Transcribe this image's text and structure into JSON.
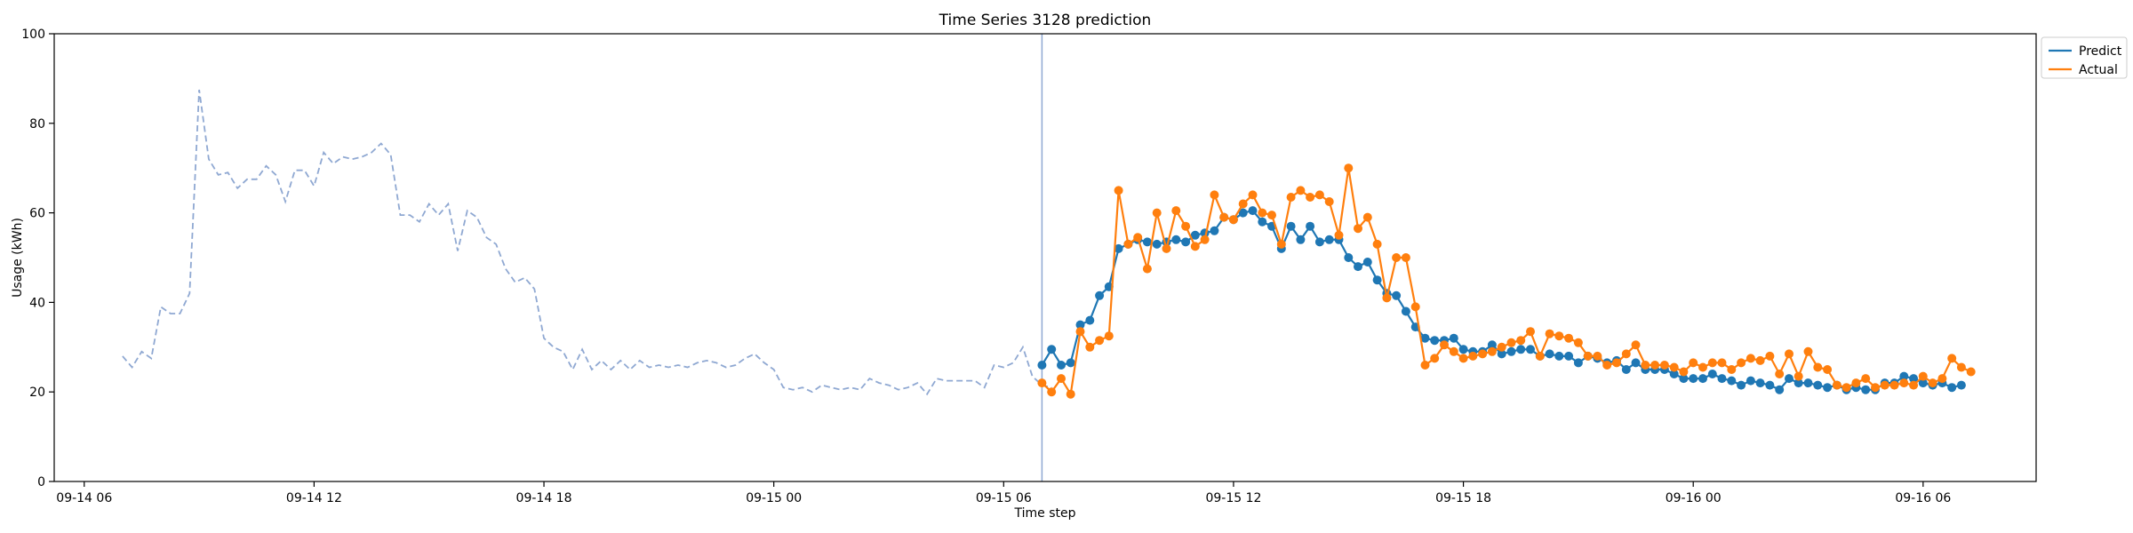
{
  "chart_data": {
    "type": "line",
    "title": "Time Series 3128 prediction",
    "xlabel": "Time step",
    "ylabel": "Usage (kWh)",
    "ylim": [
      0,
      100
    ],
    "yticks": [
      0,
      20,
      40,
      60,
      80,
      100
    ],
    "xlim": [
      "2024-09-14 05:13",
      "2024-09-16 08:57"
    ],
    "xticks": [
      {
        "t": "2024-09-14 06:00",
        "label": "09-14 06"
      },
      {
        "t": "2024-09-14 12:00",
        "label": "09-14 12"
      },
      {
        "t": "2024-09-14 18:00",
        "label": "09-14 18"
      },
      {
        "t": "2024-09-15 00:00",
        "label": "09-15 00"
      },
      {
        "t": "2024-09-15 06:00",
        "label": "09-15 06"
      },
      {
        "t": "2024-09-15 12:00",
        "label": "09-15 12"
      },
      {
        "t": "2024-09-15 18:00",
        "label": "09-15 18"
      },
      {
        "t": "2024-09-16 00:00",
        "label": "09-16 00"
      },
      {
        "t": "2024-09-16 06:00",
        "label": "09-16 06"
      }
    ],
    "vline": "2024-09-15 07:00",
    "series": [
      {
        "name": "History",
        "style": "dashed",
        "color": "#8fa8d2",
        "start": "2024-09-14 07:00",
        "interval_minutes": 15,
        "values": [
          28,
          25.5,
          29,
          27.5,
          39,
          37.5,
          37.5,
          42,
          87.5,
          72,
          68.5,
          69,
          65.5,
          67.5,
          67.5,
          70.5,
          68.5,
          62.5,
          69.5,
          69.5,
          66,
          73.5,
          71,
          72.5,
          72,
          72.5,
          73.5,
          75.5,
          73,
          59.5,
          59.5,
          58,
          62,
          59.5,
          62,
          51.5,
          60.5,
          59,
          54.5,
          53,
          47.5,
          44.5,
          45.5,
          43,
          32,
          30,
          29,
          25,
          29.5,
          25,
          27,
          25,
          27,
          25,
          27,
          25.5,
          26,
          25.5,
          26,
          25.5,
          26.5,
          27,
          26.5,
          25.5,
          26,
          27.5,
          28.5,
          26.5,
          25,
          21,
          20.5,
          21,
          20,
          21.5,
          21,
          20.5,
          21,
          20.5,
          23,
          22,
          21.5,
          20.5,
          21,
          22,
          19.5,
          23,
          22.5,
          22.5,
          22.5,
          22.5,
          21,
          26,
          25.5,
          26.5,
          30,
          23.5,
          21.5,
          21
        ]
      },
      {
        "name": "Predict",
        "style": "solid-markers",
        "color": "#1f77b4",
        "start": "2024-09-15 07:00",
        "interval_minutes": 15,
        "values": [
          26,
          29.5,
          26,
          26.5,
          35,
          36,
          41.5,
          43.5,
          52,
          53,
          54,
          53.5,
          53,
          53.5,
          54,
          53.5,
          55,
          55.5,
          56,
          59,
          58.5,
          60,
          60.5,
          58,
          57,
          52,
          57,
          54,
          57,
          53.5,
          54,
          54,
          50,
          48,
          49,
          45,
          42,
          41.5,
          38,
          34.5,
          32,
          31.5,
          31.5,
          32,
          29.5,
          29,
          29,
          30.5,
          28.5,
          29,
          29.5,
          29.5,
          28,
          28.5,
          28,
          28,
          26.5,
          28,
          27.5,
          26.5,
          27,
          25,
          26.5,
          25,
          25,
          25,
          24,
          23,
          23,
          23,
          24,
          23,
          22.5,
          21.5,
          22.5,
          22,
          21.5,
          20.5,
          23,
          22,
          22,
          21.5,
          21,
          21.5,
          20.5,
          21,
          20.5,
          20.5,
          22,
          22,
          23.5,
          23,
          22,
          21.5,
          22,
          21,
          21.5
        ]
      },
      {
        "name": "Actual",
        "style": "solid-markers",
        "color": "#ff7f0e",
        "start": "2024-09-15 07:00",
        "interval_minutes": 15,
        "values": [
          22,
          20,
          23,
          19.5,
          33.5,
          30,
          31.5,
          32.5,
          65,
          53,
          54.5,
          47.5,
          60,
          52,
          60.5,
          57,
          52.5,
          54,
          64,
          59,
          58.5,
          62,
          64,
          60,
          59.5,
          53,
          63.5,
          65,
          63.5,
          64,
          62.5,
          55,
          70,
          56.5,
          59,
          53,
          41,
          50,
          50,
          39,
          26,
          27.5,
          30.5,
          29,
          27.5,
          28,
          28.5,
          29,
          30,
          31,
          31.5,
          33.5,
          28,
          33,
          32.5,
          32,
          31,
          28,
          28,
          26,
          26.5,
          28.5,
          30.5,
          26,
          26,
          26,
          25.5,
          24.5,
          26.5,
          25.5,
          26.5,
          26.5,
          25,
          26.5,
          27.5,
          27,
          28,
          24,
          28.5,
          23.5,
          29,
          25.5,
          25,
          21.5,
          21,
          22,
          23,
          21,
          21.5,
          21.5,
          22,
          21.5,
          23.5,
          22,
          23,
          27.5,
          25.5,
          24.5
        ]
      }
    ],
    "legend": {
      "placement": "top-right",
      "entries": [
        {
          "label": "Predict",
          "color": "#1f77b4"
        },
        {
          "label": "Actual",
          "color": "#ff7f0e"
        }
      ]
    }
  }
}
